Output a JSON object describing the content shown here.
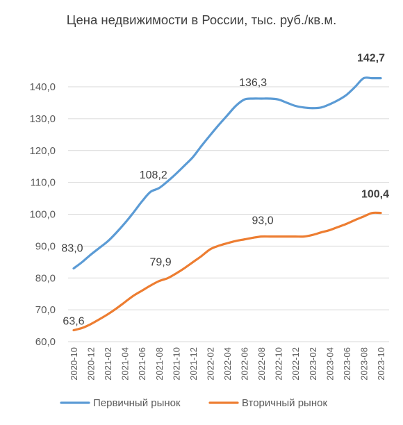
{
  "chart_data": {
    "type": "line",
    "title": "Цена недвижимости в России, тыс. руб./кв.м.",
    "xlabel": "",
    "ylabel": "",
    "ylim": [
      60,
      140
    ],
    "y_ticks": [
      "60,0",
      "70,0",
      "80,0",
      "90,0",
      "100,0",
      "110,0",
      "120,0",
      "130,0",
      "140,0"
    ],
    "y_tick_values": [
      60,
      70,
      80,
      90,
      100,
      110,
      120,
      130,
      140
    ],
    "grid": "horizontal",
    "legend_position": "bottom",
    "x_ticks": [
      "2020-10",
      "2020-12",
      "2021-02",
      "2021-04",
      "2021-06",
      "2021-08",
      "2021-10",
      "2021-12",
      "2022-02",
      "2022-04",
      "2022-06",
      "2022-08",
      "2022-10",
      "2022-12",
      "2023-02",
      "2023-04",
      "2023-06",
      "2023-08",
      "2023-10"
    ],
    "x": [
      "2020-10",
      "2020-11",
      "2020-12",
      "2021-01",
      "2021-02",
      "2021-03",
      "2021-04",
      "2021-05",
      "2021-06",
      "2021-07",
      "2021-08",
      "2021-09",
      "2021-10",
      "2021-11",
      "2021-12",
      "2022-01",
      "2022-02",
      "2022-03",
      "2022-04",
      "2022-05",
      "2022-06",
      "2022-07",
      "2022-08",
      "2022-09",
      "2022-10",
      "2022-11",
      "2022-12",
      "2023-01",
      "2023-02",
      "2023-03",
      "2023-04",
      "2023-05",
      "2023-06",
      "2023-07",
      "2023-08",
      "2023-09",
      "2023-10"
    ],
    "series": [
      {
        "name": "Первичный рынок",
        "color": "#5b9bd5",
        "values": [
          83.0,
          85.0,
          87.3,
          89.4,
          91.5,
          94.2,
          97.2,
          100.5,
          104.0,
          107.0,
          108.2,
          110.3,
          112.7,
          115.3,
          118.0,
          121.5,
          124.8,
          128.0,
          131.0,
          134.0,
          136.0,
          136.3,
          136.3,
          136.3,
          136.0,
          135.0,
          134.0,
          133.5,
          133.3,
          133.5,
          134.5,
          135.8,
          137.5,
          140.0,
          142.7,
          142.7,
          142.7
        ],
        "labels": [
          {
            "index": 0,
            "text": "83,0",
            "bold": false
          },
          {
            "index": 10,
            "text": "108,2",
            "bold": false
          },
          {
            "index": 22,
            "text": "136,3",
            "bold": false
          },
          {
            "index": 36,
            "text": "142,7",
            "bold": true
          }
        ]
      },
      {
        "name": "Вторичный рынок",
        "color": "#ed7d31",
        "values": [
          63.6,
          64.3,
          65.5,
          67.0,
          68.6,
          70.4,
          72.4,
          74.4,
          76.0,
          77.6,
          79.0,
          79.9,
          81.4,
          83.1,
          85.0,
          86.9,
          89.0,
          90.1,
          90.9,
          91.6,
          92.1,
          92.6,
          93.0,
          93.0,
          93.0,
          93.0,
          93.0,
          93.0,
          93.5,
          94.3,
          95.0,
          96.0,
          97.0,
          98.2,
          99.3,
          100.4,
          100.4
        ],
        "labels": [
          {
            "index": 0,
            "text": "63,6",
            "bold": false
          },
          {
            "index": 11,
            "text": "79,9",
            "bold": false
          },
          {
            "index": 22,
            "text": "93,0",
            "bold": false
          },
          {
            "index": 36,
            "text": "100,4",
            "bold": true
          }
        ]
      }
    ]
  }
}
